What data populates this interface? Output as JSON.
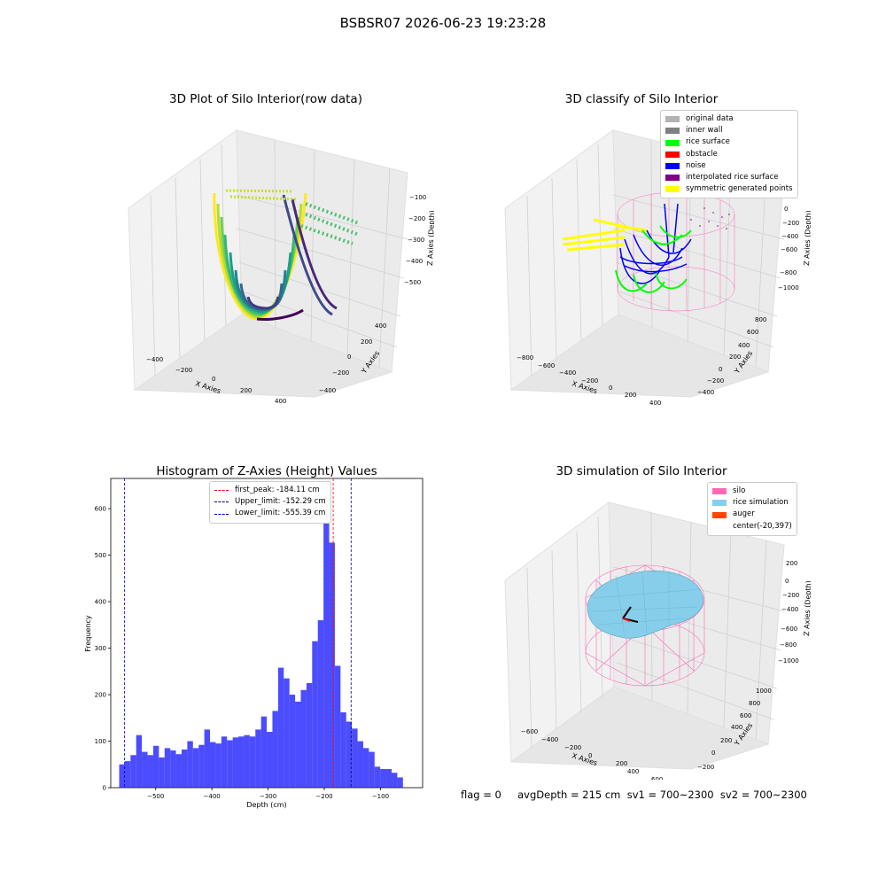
{
  "suptitle": "BSBSR07 2026-06-23 19:23:28",
  "panels": {
    "raw": {
      "title": "3D Plot of Silo Interior(row data)",
      "x_label": "X Axies",
      "y_label": "Y Axies",
      "z_label": "Z Axies (Depth)",
      "x_ticks": [
        "−400",
        "−200",
        "0",
        "200",
        "400"
      ],
      "y_ticks": [
        "−400",
        "−200",
        "0",
        "200",
        "400"
      ],
      "z_ticks": [
        "−100",
        "−200",
        "−300",
        "−400",
        "−500"
      ]
    },
    "classify": {
      "title": "3D classify of Silo Interior",
      "x_label": "X Axies",
      "y_label": "Y Axies",
      "z_label": "Z Axies (Depth)",
      "x_ticks": [
        "−800",
        "−600",
        "−400",
        "−200",
        "0",
        "200",
        "400"
      ],
      "y_ticks": [
        "−400",
        "−200",
        "0",
        "200",
        "400",
        "600",
        "800"
      ],
      "z_ticks": [
        "200",
        "0",
        "−200",
        "−400",
        "−600",
        "−800",
        "−1000"
      ],
      "legend": [
        {
          "label": "original data",
          "color": "#b3b3b3"
        },
        {
          "label": "inner wall",
          "color": "#808080"
        },
        {
          "label": "rice surface",
          "color": "#00ff00"
        },
        {
          "label": "obstacle",
          "color": "#ff0000"
        },
        {
          "label": "noise",
          "color": "#0000ff"
        },
        {
          "label": "interpolated rice surface",
          "color": "#800080"
        },
        {
          "label": "symmetric generated points",
          "color": "#ffff00"
        }
      ]
    },
    "simulation": {
      "title": "3D simulation of Silo Interior",
      "x_label": "X Axies",
      "y_label": "Y Axies",
      "z_label": "Z Axies (Depth)",
      "x_ticks": [
        "−600",
        "−400",
        "−200",
        "0",
        "200",
        "400",
        "600"
      ],
      "y_ticks": [
        "−200",
        "0",
        "200",
        "400",
        "600",
        "800",
        "1000"
      ],
      "z_ticks": [
        "200",
        "0",
        "−200",
        "−400",
        "−600",
        "−800",
        "−1000"
      ],
      "legend": [
        {
          "label": "silo",
          "color": "#ff69b4"
        },
        {
          "label": "rice simulation",
          "color": "#87ceeb"
        },
        {
          "label": "auger",
          "color": "#ff4500"
        },
        {
          "label": "center(-20,397)",
          "color": ""
        }
      ]
    }
  },
  "chart_data": {
    "type": "bar",
    "title": "Histogram of Z-Axies (Height) Values",
    "xlabel": "Depth (cm)",
    "ylabel": "Frequency",
    "bar_color": "#0000ff",
    "xlim": [
      -580,
      -25
    ],
    "ylim": [
      0,
      665
    ],
    "x_ticks": [
      -500,
      -400,
      -300,
      -200,
      -100
    ],
    "y_ticks": [
      0,
      100,
      200,
      300,
      400,
      500,
      600
    ],
    "bin_start": -565,
    "bin_width": 10.1,
    "values": [
      50,
      57,
      70,
      113,
      77,
      70,
      90,
      65,
      85,
      80,
      72,
      82,
      100,
      85,
      92,
      125,
      98,
      95,
      110,
      102,
      108,
      110,
      113,
      110,
      125,
      153,
      120,
      165,
      258,
      235,
      200,
      185,
      210,
      225,
      315,
      360,
      632,
      527,
      262,
      162,
      142,
      127,
      100,
      85,
      77,
      45,
      40,
      40,
      32,
      22
    ],
    "reference_lines": [
      {
        "label": "first_peak: -184.11 cm",
        "x": -184.11,
        "color": "#ff0000"
      },
      {
        "label": "Upper_limit: -152.29 cm",
        "x": -152.29,
        "color": "#00008b"
      },
      {
        "label": "Lower_limit: -555.39 cm",
        "x": -555.39,
        "color": "#0000cd"
      }
    ]
  },
  "footer": {
    "text": "flag = 0     avgDepth = 215 cm  sv1 = 700~2300  sv2 = 700~2300"
  }
}
